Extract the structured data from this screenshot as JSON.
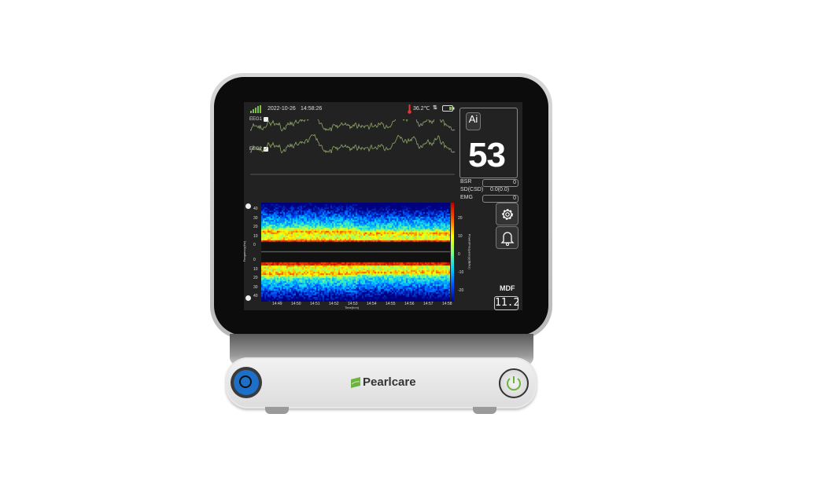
{
  "status": {
    "date": "2022-10-26",
    "time": "14:58:26",
    "temperature": "36.2℃",
    "signal_icon": "signal-bars-icon",
    "battery_icon": "battery-icon"
  },
  "channels": [
    {
      "label": "EEG1"
    },
    {
      "label": "EEG2"
    }
  ],
  "index_panel": {
    "ai_label": "Ai",
    "value": "53"
  },
  "params": [
    {
      "label": "BSR",
      "value": "0"
    },
    {
      "label": "SD(CSD)",
      "value": "0.0(0.0)"
    },
    {
      "label": "EMG",
      "value": "0"
    }
  ],
  "mdf": {
    "label": "MDF",
    "value": "11.2"
  },
  "spectrogram": {
    "y_ticks_top": [
      "40",
      "30",
      "20",
      "10",
      "0"
    ],
    "y_ticks_bottom": [
      "0",
      "10",
      "20",
      "30",
      "40"
    ],
    "ylabel": "Frequency(Hz)",
    "xlabel": "Time(h:m)",
    "x_ticks": [
      "14:49",
      "14:50",
      "14:51",
      "14:52",
      "14:53",
      "14:54",
      "14:55",
      "14:56",
      "14:57",
      "14:58"
    ],
    "colorbar_ticks": [
      "20",
      "10",
      "0",
      "-10",
      "-20"
    ],
    "colorbar_label": "Power/Frequency(dB/Hz)",
    "colorscale": [
      "#00007f",
      "#0050ff",
      "#00d0ff",
      "#80ff80",
      "#ffff00",
      "#ff6000",
      "#c00000"
    ]
  },
  "colors": {
    "wave": "#8fa86a",
    "brand_green": "#6cb33f",
    "connector_blue": "#1e6fc8"
  },
  "brand": "Pearlcare"
}
